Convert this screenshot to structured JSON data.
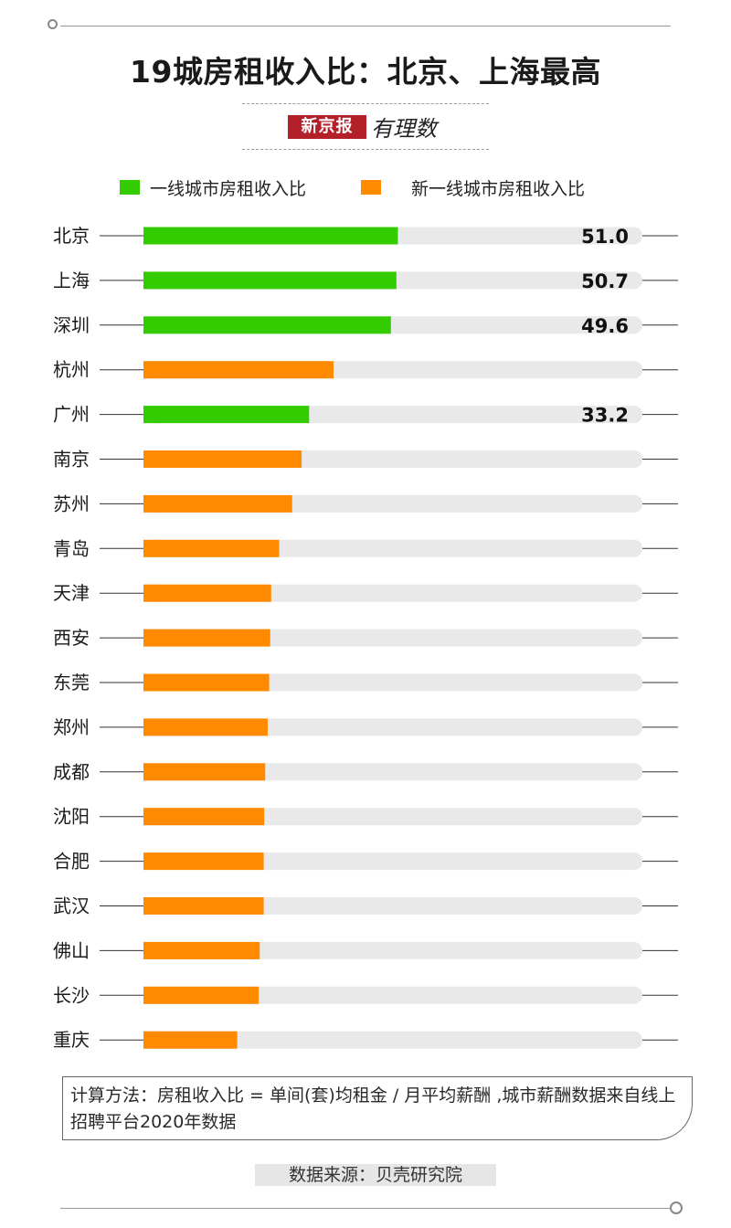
{
  "title": "19城房租收入比：北京、上海最高",
  "brand": {
    "name": "新京报",
    "column": "有理数"
  },
  "legend": [
    {
      "label": "一线城市房租收入比",
      "color": "#33cc00"
    },
    {
      "label": "新一线城市房租收入比",
      "color": "#ff8a00"
    }
  ],
  "note": "计算方法：房租收入比 = 单间(套)均租金 / 月平均薪酬 ,城市薪酬数据来自线上招聘平台2020年数据",
  "source": "数据来源：贝壳研究院",
  "chart_data": {
    "type": "bar",
    "orientation": "horizontal",
    "xlim": [
      0,
      100
    ],
    "colors": {
      "first_tier": "#33cc00",
      "new_first_tier": "#ff8a00",
      "track": "#e9e9e9"
    },
    "categories": [
      "北京",
      "上海",
      "深圳",
      "杭州",
      "广州",
      "南京",
      "苏州",
      "青岛",
      "天津",
      "西安",
      "东莞",
      "郑州",
      "成都",
      "沈阳",
      "合肥",
      "武汉",
      "佛山",
      "长沙",
      "重庆"
    ],
    "values": [
      51.0,
      50.7,
      49.6,
      38.1,
      33.2,
      31.7,
      29.8,
      27.2,
      25.6,
      25.4,
      25.2,
      24.9,
      24.4,
      24.2,
      24.1,
      24.1,
      23.3,
      23.1,
      18.8
    ],
    "tier": [
      "一线",
      "一线",
      "一线",
      "新一线",
      "一线",
      "新一线",
      "新一线",
      "新一线",
      "新一线",
      "新一线",
      "新一线",
      "新一线",
      "新一线",
      "新一线",
      "新一线",
      "新一线",
      "新一线",
      "新一线",
      "新一线"
    ],
    "value_labels": [
      "51.0",
      "50.7",
      "49.6",
      "",
      "33.2",
      "",
      "",
      "",
      "",
      "",
      "",
      "",
      "",
      "",
      "",
      "",
      "",
      "",
      ""
    ]
  }
}
